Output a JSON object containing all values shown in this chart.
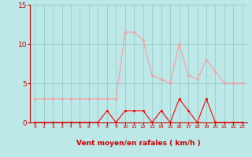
{
  "x_labels": [
    0,
    1,
    2,
    3,
    4,
    5,
    6,
    7,
    8,
    9,
    10,
    11,
    12,
    13,
    14,
    15,
    16,
    17,
    18,
    19,
    20,
    21,
    22,
    23
  ],
  "avg_wind": [
    3,
    3,
    3,
    3,
    3,
    3,
    3,
    3,
    3,
    3,
    11.5,
    11.5,
    10.5,
    6,
    5.5,
    5,
    10,
    6,
    5.5,
    8,
    6.5,
    5,
    5,
    5
  ],
  "gust_wind": [
    0,
    0,
    0,
    0,
    0,
    0,
    0,
    0,
    1.5,
    0,
    1.5,
    1.5,
    1.5,
    0,
    1.5,
    0,
    3,
    1.5,
    0,
    3,
    0,
    0,
    0,
    0
  ],
  "bg_color": "#bde8e8",
  "grid_color": "#99cccc",
  "line_avg_color": "#ff9999",
  "line_gust_color": "#ff0000",
  "xlabel": "Vent moyen/en rafales ( km/h )",
  "ylim": [
    0,
    15
  ],
  "yticks": [
    0,
    5,
    10,
    15
  ],
  "wind_dirs": [
    "↙",
    "↙",
    "↙",
    "↙",
    "↙",
    "↙",
    "↙",
    "↘",
    "↘",
    "↘",
    "→",
    "→",
    "→",
    "→",
    "→",
    "↘",
    "↘",
    "↘",
    "↘",
    "↘",
    "↘",
    "↘",
    "↘",
    "↘"
  ]
}
